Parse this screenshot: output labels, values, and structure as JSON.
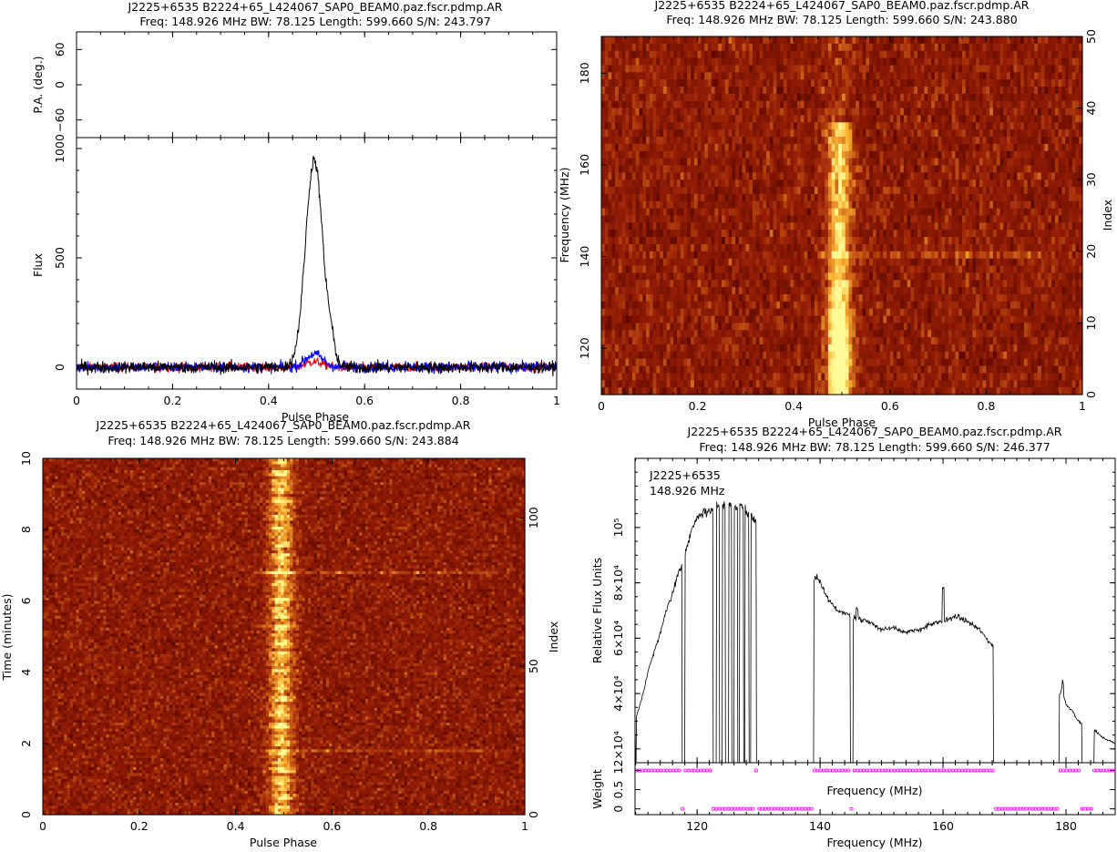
{
  "panels": {
    "profile": {
      "title": "J2225+6535  B2224+65_L424067_SAP0_BEAM0.paz.fscr.pdmp.AR",
      "subtitle": "Freq: 148.926 MHz BW: 78.125 Length: 599.660 S/N: 243.797"
    },
    "freq": {
      "title": "J2225+6535  B2224+65_L424067_SAP0_BEAM0.paz.fscr.pdmp.AR",
      "subtitle": "Freq: 148.926 MHz BW: 78.125 Length: 599.660 S/N: 243.880"
    },
    "time": {
      "title": "J2225+6535  B2224+65_L424067_SAP0_BEAM0.paz.fscr.pdmp.AR",
      "subtitle": "Freq: 148.926 MHz BW: 78.125 Length: 599.660 S/N: 243.884"
    },
    "band": {
      "title": "J2225+6535  B2224+65_L424067_SAP0_BEAM0.paz.fscr.pdmp.AR",
      "subtitle": "Freq: 148.926 MHz BW: 78.125 Length: 599.660 S/N: 246.377",
      "annotation_line1": "J2225+6535",
      "annotation_line2": "148.926 MHz"
    }
  },
  "colors": {
    "total_intensity": "#000000",
    "linear_pol": "#ff0000",
    "circular_pol": "#0000ff",
    "weight_marker": "#ff00ff",
    "heat_low": "#7a1000",
    "heat_mid": "#d46a1a",
    "heat_high": "#fff070"
  },
  "chart_data": [
    {
      "type": "line",
      "name": "pa",
      "ylabel": "P.A. (deg.)",
      "xlim": [
        0,
        1
      ],
      "ylim": [
        -90,
        90
      ],
      "yticks": [
        -60,
        0,
        60
      ],
      "ytick_labels": [
        "−60",
        "0",
        "60"
      ]
    },
    {
      "type": "line",
      "name": "profile",
      "xlabel": "Pulse Phase",
      "ylabel": "Flux",
      "xlim": [
        0,
        1
      ],
      "ylim": [
        -100,
        1050
      ],
      "xticks": [
        0,
        0.2,
        0.4,
        0.6,
        0.8,
        1
      ],
      "xtick_labels": [
        "0",
        "0.2",
        "0.4",
        "0.6",
        "0.8",
        "1"
      ],
      "yticks": [
        0,
        500,
        1000
      ],
      "ytick_labels": [
        "0",
        "500",
        "1000"
      ],
      "series": [
        {
          "key": "total_intensity",
          "peak_phase": 0.495,
          "peak": 950,
          "noise": 20
        },
        {
          "key": "linear_pol",
          "peak_phase": 0.495,
          "peak": 25,
          "noise": 15
        },
        {
          "key": "circular_pol",
          "peak_phase": 0.495,
          "peak": 60,
          "noise": 18
        }
      ]
    },
    {
      "type": "heatmap",
      "name": "phase_frequency",
      "xlabel": "Pulse Phase",
      "ylabel": "Frequency (MHz)",
      "y2label": "Index",
      "xlim": [
        0,
        1
      ],
      "ylim": [
        109.9,
        188.0
      ],
      "y2lim": [
        0,
        50
      ],
      "xticks": [
        0,
        0.2,
        0.4,
        0.6,
        0.8,
        1
      ],
      "xtick_labels": [
        "0",
        "0.2",
        "0.4",
        "0.6",
        "0.8",
        "1"
      ],
      "yticks": [
        120,
        140,
        160,
        180
      ],
      "ytick_labels": [
        "120",
        "140",
        "160",
        "180"
      ],
      "y2ticks": [
        0,
        10,
        20,
        30,
        40,
        50
      ],
      "y2tick_labels": [
        "0",
        "10",
        "20",
        "30",
        "40",
        "50"
      ],
      "pulse_phase": 0.495
    },
    {
      "type": "heatmap",
      "name": "phase_time",
      "xlabel": "Pulse Phase",
      "ylabel": "Time (minutes)",
      "y2label": "Index",
      "xlim": [
        0,
        1
      ],
      "ylim": [
        0,
        10
      ],
      "y2lim": [
        0,
        120
      ],
      "xticks": [
        0,
        0.2,
        0.4,
        0.6,
        0.8,
        1
      ],
      "xtick_labels": [
        "0",
        "0.2",
        "0.4",
        "0.6",
        "0.8",
        "1"
      ],
      "yticks": [
        0,
        2,
        4,
        6,
        8,
        10
      ],
      "ytick_labels": [
        "0",
        "2",
        "4",
        "6",
        "8",
        "10"
      ],
      "y2ticks": [
        0,
        50,
        100
      ],
      "y2tick_labels": [
        "0",
        "50",
        "100"
      ],
      "pulse_phase": 0.495
    },
    {
      "type": "line",
      "name": "bandpass",
      "xlabel": "Frequency (MHz)",
      "ylabel": "Relative Flux Units",
      "xlim": [
        109.9,
        188.0
      ],
      "ylim": [
        15000,
        125000
      ],
      "yticks": [
        20000,
        40000,
        60000,
        80000,
        100000
      ],
      "ytick_labels": [
        "2×10⁴",
        "4×10⁴",
        "6×10⁴",
        "8×10⁴",
        "10⁵"
      ],
      "x": [
        109.9,
        111,
        112,
        113,
        114,
        115,
        116,
        117,
        117.5,
        118,
        119,
        120,
        121,
        122,
        123,
        124,
        125,
        126,
        127,
        128,
        129,
        129.6,
        139,
        139.5,
        140,
        141,
        142,
        143,
        144,
        144.9,
        145.5,
        146,
        148,
        150,
        152,
        154,
        156,
        158,
        160,
        161,
        162,
        164,
        166,
        167,
        168.2,
        178.9,
        179.3,
        180,
        181,
        182,
        182.6,
        184.6,
        185,
        186,
        187,
        188
      ],
      "y": [
        30000,
        38000,
        48000,
        55000,
        62000,
        70000,
        76000,
        84000,
        86000,
        90000,
        98000,
        104000,
        105000,
        106000,
        108000,
        107000,
        109000,
        107000,
        108000,
        106000,
        104000,
        102000,
        82000,
        82000,
        80000,
        75000,
        72000,
        70000,
        69000,
        68000,
        68000,
        67000,
        66000,
        63000,
        64000,
        62000,
        63000,
        65000,
        66000,
        67000,
        68000,
        66000,
        63000,
        60000,
        57000,
        39000,
        42000,
        36000,
        34000,
        30000,
        29000,
        27000,
        26000,
        24000,
        23000,
        22000
      ],
      "dropouts": [
        [
          109.9,
          110.1
        ],
        [
          117.5,
          118.0
        ],
        [
          122.6,
          123.1
        ],
        [
          123.6,
          124.1
        ],
        [
          124.6,
          125.1
        ],
        [
          125.6,
          126.0
        ],
        [
          126.6,
          126.9
        ],
        [
          127.5,
          127.8
        ],
        [
          128.4,
          128.7
        ],
        [
          129.6,
          139.0
        ],
        [
          144.9,
          145.4
        ],
        [
          168.2,
          178.9
        ],
        [
          182.6,
          184.6
        ]
      ]
    },
    {
      "type": "scatter",
      "name": "weights",
      "xlabel": "Frequency (MHz)",
      "ylabel": "Weight",
      "xlim": [
        109.9,
        188.0
      ],
      "ylim": [
        -0.15,
        1.2
      ],
      "xticks": [
        120,
        140,
        160,
        180
      ],
      "xtick_labels": [
        "120",
        "140",
        "160",
        "180"
      ],
      "yticks": [
        0,
        0.5,
        1
      ],
      "ytick_labels": [
        "0",
        "0.5",
        "1"
      ],
      "zero_ranges": [
        [
          117.5,
          118.0
        ],
        [
          122.6,
          129.6
        ],
        [
          130.0,
          139.0
        ],
        [
          144.9,
          145.4
        ],
        [
          168.2,
          178.9
        ],
        [
          182.6,
          184.6
        ]
      ]
    }
  ]
}
